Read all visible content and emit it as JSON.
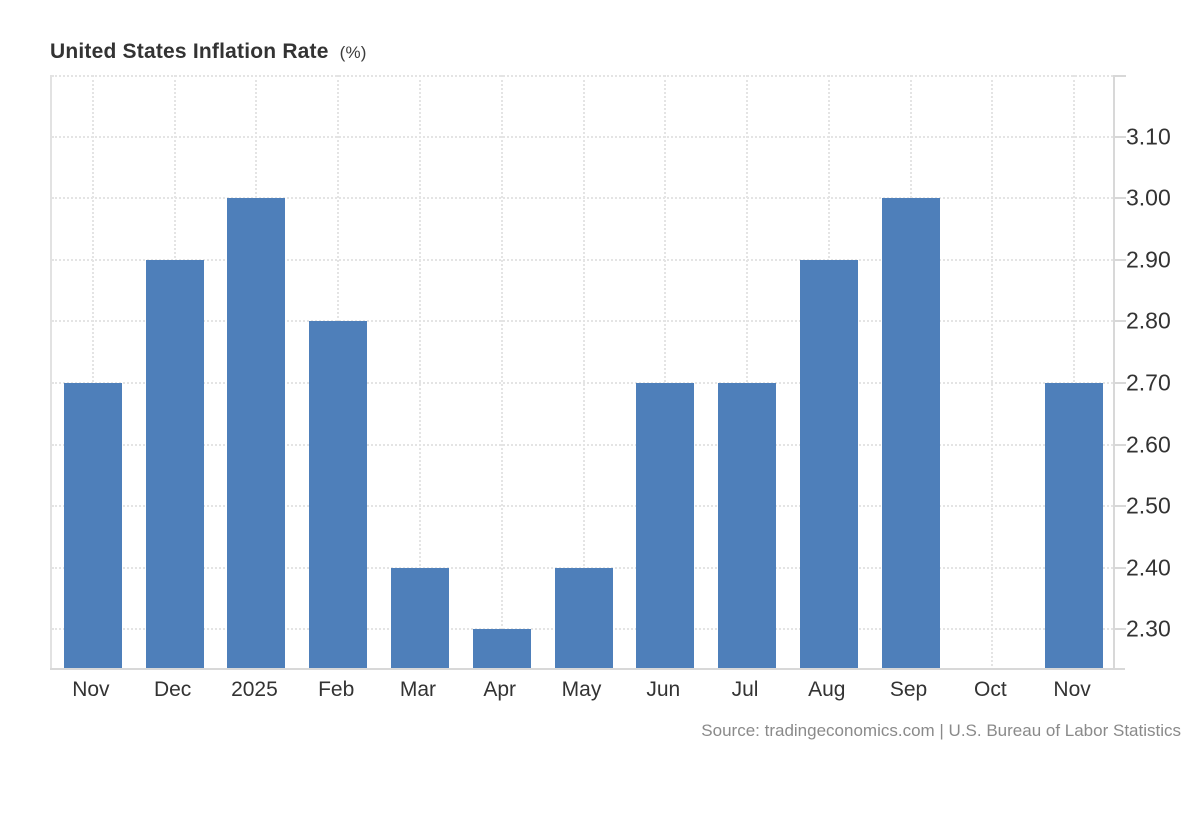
{
  "title": {
    "main": "United States Inflation Rate",
    "unit": "(%)"
  },
  "source": "Source: tradingeconomics.com | U.S. Bureau of Labor Statistics",
  "colors": {
    "bar": "#4e7fba",
    "grid": "#e4e4e4",
    "axis": "#d8d8d8",
    "label_text": "#333333",
    "source_text": "#8a8a8a"
  },
  "chart_data": {
    "type": "bar",
    "title": "United States Inflation Rate (%)",
    "xlabel": "",
    "ylabel": "",
    "categories": [
      "Nov",
      "Dec",
      "2025",
      "Feb",
      "Mar",
      "Apr",
      "May",
      "Jun",
      "Jul",
      "Aug",
      "Sep",
      "Oct",
      "Nov"
    ],
    "values": [
      2.7,
      2.9,
      3.0,
      2.8,
      2.4,
      2.3,
      2.4,
      2.7,
      2.7,
      2.9,
      3.0,
      null,
      2.7
    ],
    "ylim": [
      2.234,
      3.2
    ],
    "yticks": [
      2.3,
      2.4,
      2.5,
      2.6,
      2.7,
      2.8,
      2.9,
      3.0,
      3.1
    ],
    "ytick_labels": [
      "2.30",
      "2.40",
      "2.50",
      "2.60",
      "2.70",
      "2.80",
      "2.90",
      "3.00",
      "3.10"
    ],
    "grid": true,
    "legend": false,
    "bar_color": "#4e7fba"
  }
}
